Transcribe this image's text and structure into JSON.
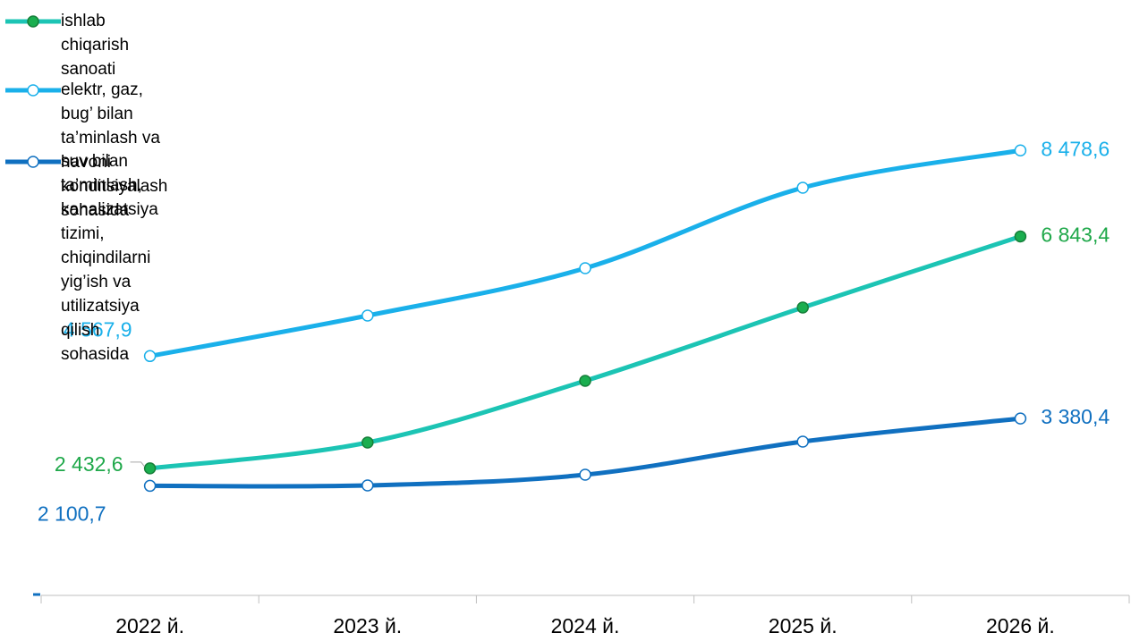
{
  "chart_data": {
    "type": "line",
    "categories": [
      "2022 й.",
      "2023 й.",
      "2024 й.",
      "2025 й.",
      "2026 й."
    ],
    "series": [
      {
        "name": "ishlab chiqarish sanoati",
        "color": "#1cc4b4",
        "marker_color": "#1aae4f",
        "label_color": "#1fa84a",
        "values": [
          2432.6,
          2924,
          4097,
          5491,
          6843.4
        ],
        "value_labels": [
          "2 432,6",
          null,
          null,
          null,
          "6 843,4"
        ]
      },
      {
        "name": "elektr, gaz, bug’ bilan ta’minlash va havoni konditsiyalash sohasida",
        "color": "#1ab0ea",
        "marker_color": "#ffffff",
        "label_color": "#1ab0ea",
        "values": [
          4567.9,
          5338,
          6239,
          7769,
          8478.6
        ],
        "value_labels": [
          "4 567,9",
          null,
          null,
          null,
          "8 478,6"
        ]
      },
      {
        "name": "suv bilan ta’minlash, kanalizatsiya tizimi, chiqindilarni yig’ish va utilizatsiya qilish sohasida",
        "color": "#1070c0",
        "marker_color": "#ffffff",
        "label_color": "#1070c0",
        "values": [
          2100.7,
          2108,
          2312,
          2941,
          3380.4
        ],
        "value_labels": [
          "2 100,7",
          null,
          null,
          null,
          "3 380,4"
        ]
      }
    ],
    "ylim": [
      0,
      11339
    ],
    "legend": "top-left"
  }
}
